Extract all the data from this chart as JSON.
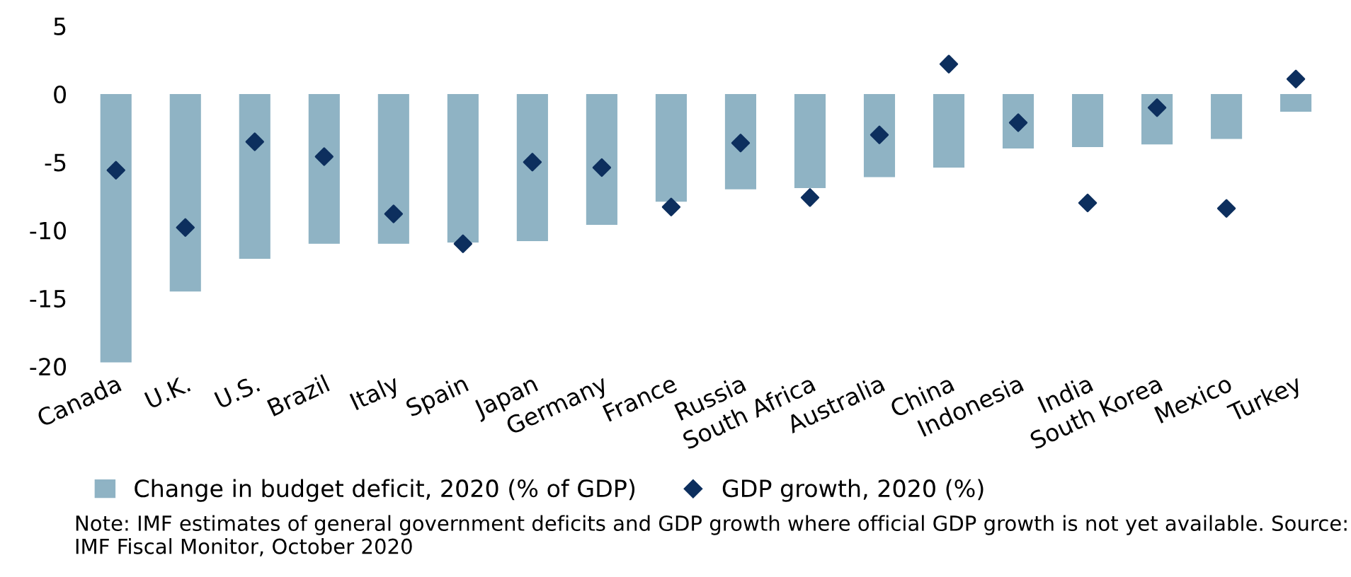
{
  "chart_data": {
    "type": "bar",
    "categories": [
      "Canada",
      "U.K.",
      "U.S.",
      "Brazil",
      "Italy",
      "Spain",
      "Japan",
      "Germany",
      "France",
      "Russia",
      "South Africa",
      "Australia",
      "China",
      "Indonesia",
      "India",
      "South Korea",
      "Mexico",
      "Turkey"
    ],
    "series": [
      {
        "name": "Change in budget deficit, 2020 (% of GDP)",
        "color": "#8fb3c4",
        "values": [
          -19.7,
          -14.5,
          -12.1,
          -11.0,
          -11.0,
          -10.9,
          -10.8,
          -9.6,
          -7.9,
          -7.0,
          -6.9,
          -6.1,
          -5.4,
          -4.0,
          -3.9,
          -3.7,
          -3.3,
          -1.3
        ]
      },
      {
        "name": "GDP growth, 2020 (%)",
        "type": "scatter",
        "color": "#0d2f5e",
        "marker": "diamond",
        "values": [
          -5.6,
          -9.8,
          -3.5,
          -4.6,
          -8.8,
          -11.0,
          -5.0,
          -5.4,
          -8.3,
          -3.6,
          -7.6,
          -3.0,
          2.2,
          -2.1,
          -8.0,
          -1.0,
          -8.4,
          1.1
        ]
      }
    ],
    "ylim": [
      -20,
      5
    ],
    "yticks": [
      -20,
      -15,
      -10,
      -5,
      0,
      5
    ],
    "legend": "bottom",
    "grid": false,
    "annotations": [
      "Note: IMF estimates of general government deficits and GDP growth where official GDP growth is not yet available. Source: IMF Fiscal Monitor, October 2020"
    ]
  }
}
